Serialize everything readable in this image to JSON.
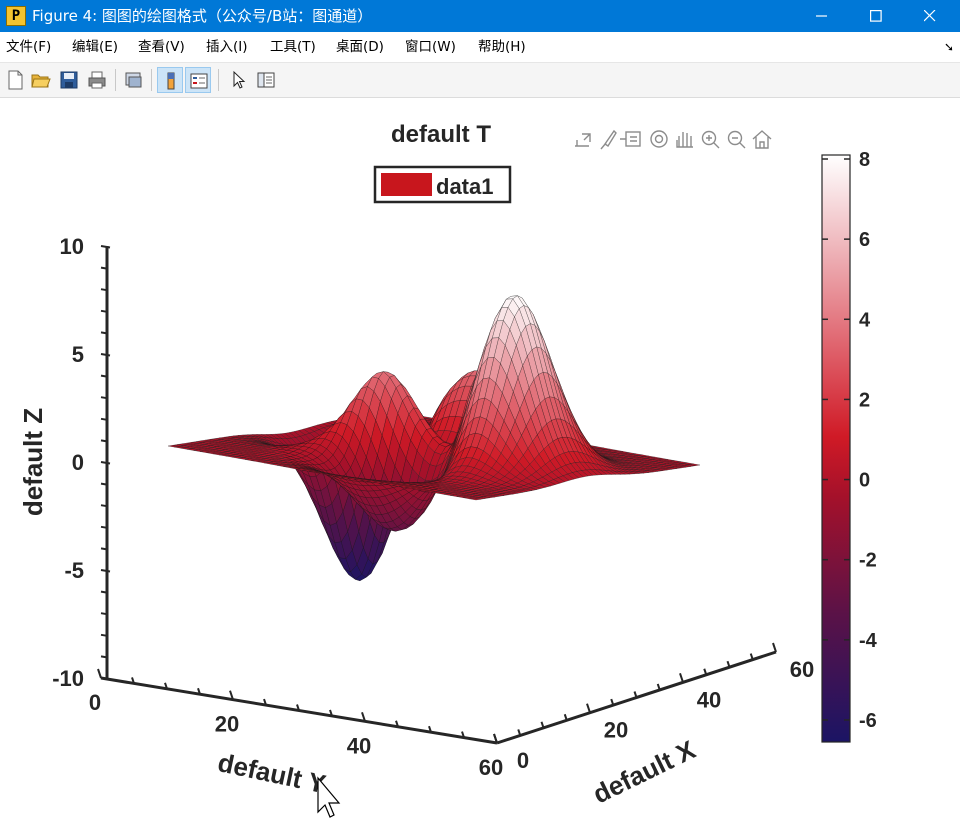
{
  "window": {
    "title": "Figure 4: 图图的绘图格式（公众号/B站：图通道）",
    "app_icon_glyph": "P"
  },
  "menu": [
    "文件(F)",
    "编辑(E)",
    "查看(V)",
    "插入(I)",
    "工具(T)",
    "桌面(D)",
    "窗口(W)",
    "帮助(H)"
  ],
  "toolbar": {
    "icons": [
      "new-figure-icon",
      "open-file-icon",
      "save-icon",
      "print-icon",
      "link-axes-icon",
      "colorbar-toggle-icon",
      "legend-toggle-icon",
      "pointer-icon",
      "property-inspector-icon"
    ]
  },
  "axes_toolbar": {
    "icons": [
      "export-icon",
      "brush-icon",
      "data-tips-icon",
      "rotate-3d-icon",
      "pan-icon",
      "zoom-in-icon",
      "zoom-out-icon",
      "home-icon"
    ]
  },
  "chart_data": {
    "type": "surface",
    "title": "default T",
    "xlabel": "default X",
    "ylabel": "default Y",
    "zlabel": "default Z",
    "xlim": [
      0,
      60
    ],
    "ylim": [
      0,
      60
    ],
    "zlim": [
      -10,
      10
    ],
    "xticks": [
      "0",
      "20",
      "40",
      "60"
    ],
    "yticks": [
      "0",
      "20",
      "40",
      "60"
    ],
    "zticks": [
      "10",
      "5",
      "0",
      "-5",
      "-10"
    ],
    "function": "peaks",
    "grid_size": 49,
    "legend": {
      "entries": [
        "data1"
      ],
      "location": "top"
    },
    "colorbar": {
      "ticks": [
        "8",
        "6",
        "4",
        "2",
        "0",
        "-2",
        "-4",
        "-6"
      ],
      "range": [
        -6.55,
        8.1
      ]
    },
    "colormap": [
      "#1b1464",
      "#5b1247",
      "#a5112a",
      "#d01a26",
      "#e06670",
      "#efb9be",
      "#ffffff"
    ],
    "legend_swatch_color": "#c8161d"
  }
}
